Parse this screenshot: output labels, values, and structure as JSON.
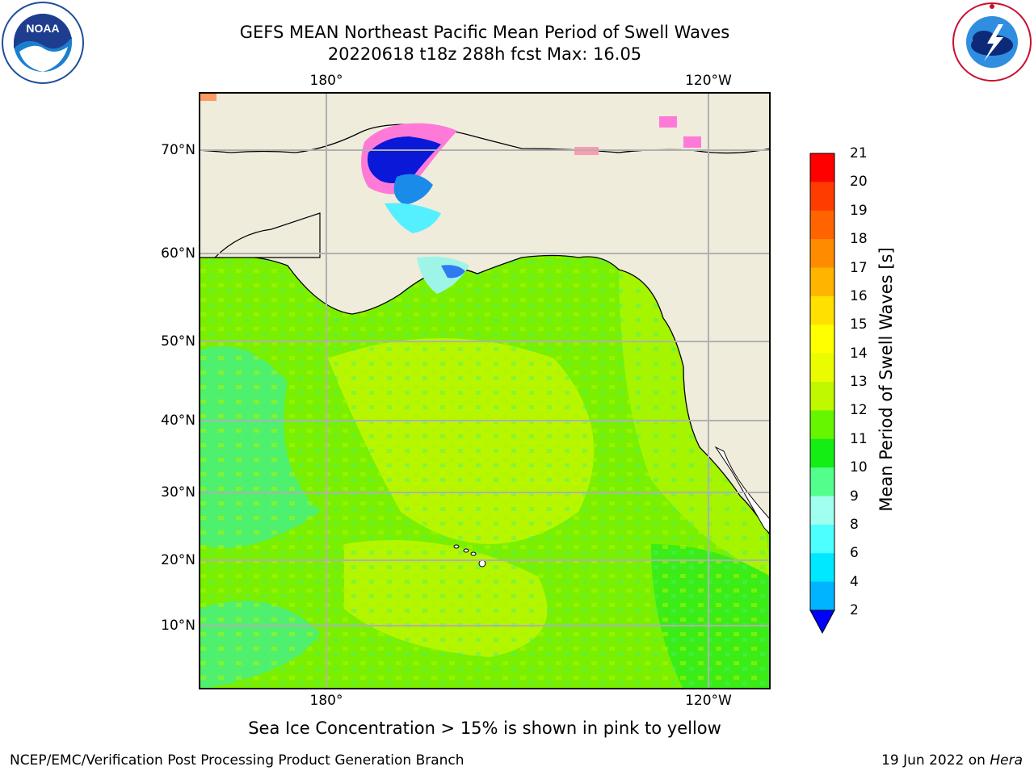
{
  "title": {
    "line1": "GEFS MEAN Northeast Pacific Mean Period of Swell Waves",
    "line2": "20220618 t18z 288h fcst   Max: 16.05"
  },
  "logos": {
    "left": "noaa-logo",
    "right": "national-weather-service-logo"
  },
  "map": {
    "lon_labels": [
      "180°",
      "120°W"
    ],
    "lat_labels": [
      "70°N",
      "60°N",
      "50°N",
      "40°N",
      "30°N",
      "20°N",
      "10°N"
    ],
    "land_color": "#efecdc",
    "gridline_color": "#b0b0b0"
  },
  "colorbar": {
    "title": "Mean Period of Swell Waves [s]",
    "levels": [
      "2",
      "4",
      "6",
      "8",
      "9",
      "10",
      "11",
      "12",
      "13",
      "14",
      "15",
      "16",
      "17",
      "18",
      "19",
      "20",
      "21"
    ],
    "colors": [
      "#0077ff",
      "#00b4ff",
      "#00e8ff",
      "#4dffff",
      "#a0ffee",
      "#52ff8c",
      "#14ee14",
      "#66f600",
      "#c0f800",
      "#ebfb00",
      "#ffff00",
      "#ffe000",
      "#ffb400",
      "#ff8c00",
      "#ff6400",
      "#ff3c00",
      "#ff0000"
    ],
    "under_color": "#0000ff"
  },
  "footnote": "Sea Ice Concentration > 15% is shown in pink to yellow",
  "credit": {
    "left": "NCEP/EMC/Verification Post Processing Product Generation Branch",
    "right_prefix": "19 Jun 2022 on ",
    "right_system": "Hera"
  }
}
